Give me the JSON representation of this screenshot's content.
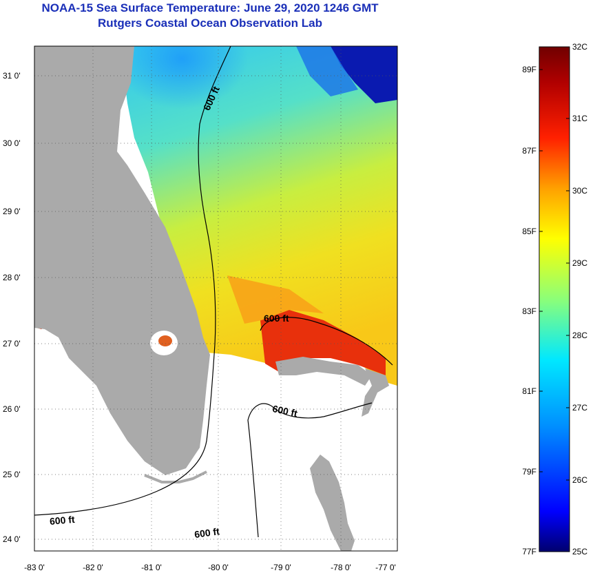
{
  "header": {
    "title": "NOAA-15 Sea Surface Temperature:  June 29, 2020 1246 GMT",
    "subtitle": "Rutgers Coastal Ocean Observation Lab"
  },
  "map": {
    "lat_labels": [
      "31 0'",
      "30 0'",
      "29 0'",
      "28 0'",
      "27 0'",
      "26 0'",
      "25 0'",
      "24 0'"
    ],
    "lon_labels": [
      "-83 0'",
      "-82 0'",
      "-81 0'",
      "-80 0'",
      "-79 0'",
      "-78 0'",
      "-77 0'"
    ],
    "contour_labels": [
      "600 ft",
      "600 ft",
      "600 ft",
      "600 ft",
      "600 ft"
    ]
  },
  "colorbar": {
    "celsius_labels": [
      "32C",
      "31C",
      "30C",
      "29C",
      "28C",
      "27C",
      "26C",
      "25C"
    ],
    "fahrenheit_labels": [
      "89F",
      "87F",
      "85F",
      "83F",
      "81F",
      "79F",
      "77F"
    ],
    "stops": [
      "#00006e",
      "#0000ff",
      "#0090ff",
      "#00e8ff",
      "#8cff78",
      "#ffff00",
      "#ffa000",
      "#ff2000",
      "#b00000",
      "#700000"
    ]
  },
  "colors": {
    "land": "#aaaaaa",
    "title": "#1a2fb8"
  }
}
